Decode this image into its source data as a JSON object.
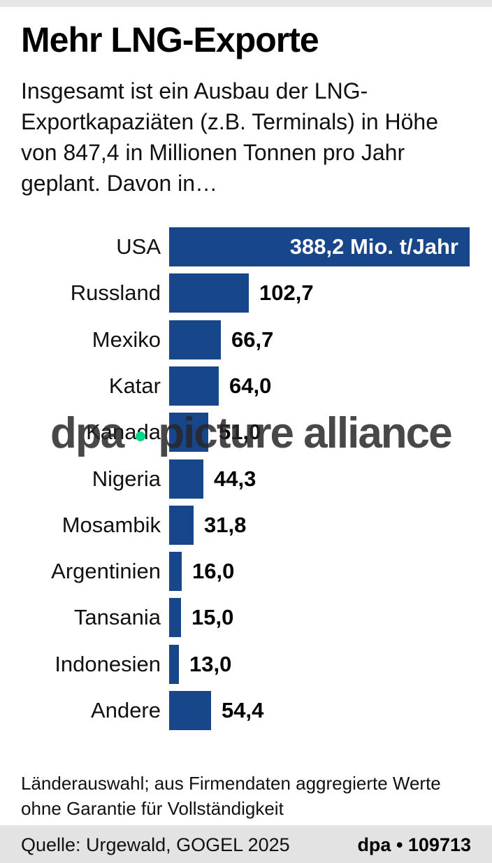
{
  "header": {
    "title": "Mehr LNG-Exporte",
    "subtitle": "Insgesamt ist ein Ausbau der LNG-Exportkapaziäten (z.B. Terminals) in Höhe von 847,4 in Millionen Tonnen pro Jahr geplant. Davon in…"
  },
  "chart_data": {
    "type": "bar",
    "orientation": "horizontal",
    "categories": [
      "USA",
      "Russland",
      "Mexiko",
      "Katar",
      "Kanada",
      "Nigeria",
      "Mosambik",
      "Argentinien",
      "Tansania",
      "Indonesien",
      "Andere"
    ],
    "values": [
      388.2,
      102.7,
      66.7,
      64.0,
      51.0,
      44.3,
      31.8,
      16.0,
      15.0,
      13.0,
      54.4
    ],
    "value_labels": [
      "388,2 Mio. t/Jahr",
      "102,7",
      "66,7",
      "64,0",
      "51,0",
      "44,3",
      "31,8",
      "16,0",
      "15,0",
      "13,0",
      "54,4"
    ],
    "title": "Mehr LNG-Exporte",
    "xlabel": "",
    "ylabel": "",
    "bar_color": "#17468a",
    "grid": false
  },
  "watermark": {
    "left": "dpa",
    "right": "picture alliance",
    "dot_color": "#00d58a"
  },
  "footnote": "Länderauswahl; aus Firmendaten aggregierte Werte ohne Garantie für Vollständigkeit",
  "footer": {
    "source": "Quelle: Urgewald, GOGEL 2025",
    "credit": "dpa • 109713"
  }
}
